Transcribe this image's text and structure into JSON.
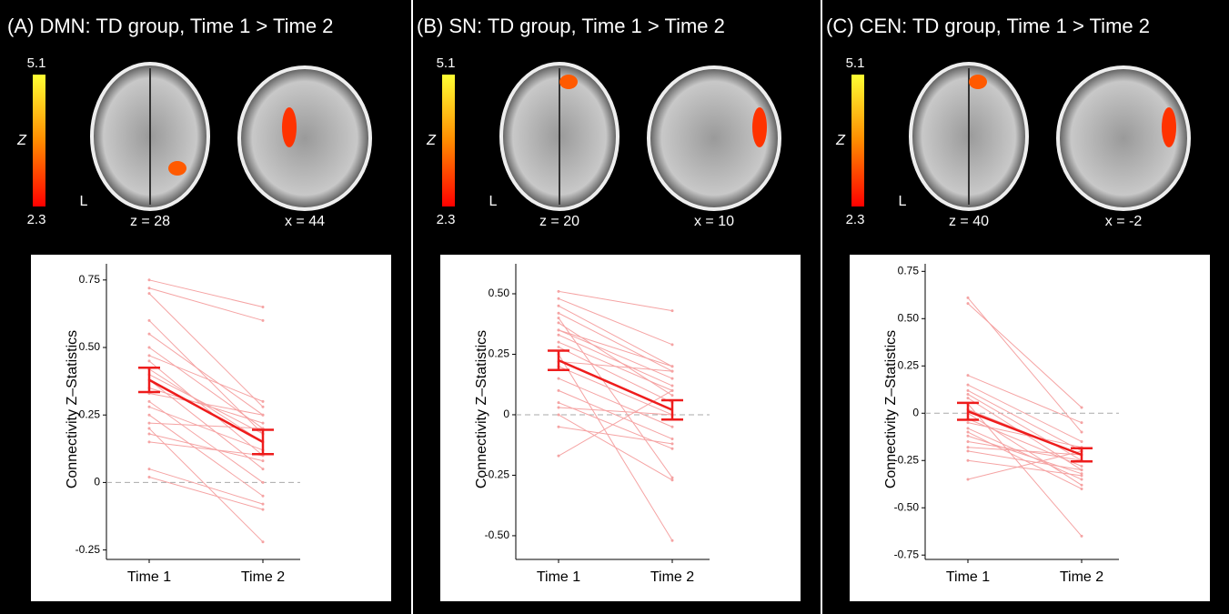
{
  "chart_data": [
    {
      "type": "paired-line",
      "title": "(A) DMN: TD group, Time 1 > Time 2",
      "colorbar": {
        "max": 5.1,
        "min": 2.3,
        "label": "Z"
      },
      "brains": [
        {
          "label": "z = 28"
        },
        {
          "label": "x = 44"
        }
      ],
      "side_label": "L",
      "ylabel": "Connectivity Z–Statistics",
      "categories": [
        "Time 1",
        "Time 2"
      ],
      "ylim": [
        -0.285,
        0.81
      ],
      "yticks": [
        -0.25,
        0,
        {
          "value": 0.25,
          "label": "0.25"
        },
        {
          "value": 0.5,
          "label": "0.50"
        },
        0.75
      ],
      "reference_line": 0,
      "subject_color": "#f5a3a3",
      "mean_color": "#ee1c1c",
      "subjects": [
        [
          0.75,
          0.65
        ],
        [
          0.72,
          0.6
        ],
        [
          0.7,
          0.28
        ],
        [
          0.55,
          0.25
        ],
        [
          0.5,
          0.2
        ],
        [
          0.47,
          0.3
        ],
        [
          0.45,
          0.1
        ],
        [
          0.42,
          0.15
        ],
        [
          0.4,
          0.18
        ],
        [
          0.38,
          0.05
        ],
        [
          0.35,
          0.22
        ],
        [
          0.33,
          0.25
        ],
        [
          0.3,
          0
        ],
        [
          0.28,
          0.12
        ],
        [
          0.25,
          -0.05
        ],
        [
          0.22,
          0.2
        ],
        [
          0.2,
          -0.22
        ],
        [
          0.18,
          0.08
        ],
        [
          0.15,
          0.1
        ],
        [
          0.05,
          -0.08
        ],
        [
          0.02,
          -0.1
        ],
        [
          0.6,
          0.18
        ]
      ],
      "mean": [
        0.38,
        0.15
      ],
      "error": [
        0.045,
        0.045
      ]
    },
    {
      "type": "paired-line",
      "title": "(B) SN: TD group, Time 1 > Time 2",
      "colorbar": {
        "max": 5.1,
        "min": 2.3,
        "label": "Z"
      },
      "brains": [
        {
          "label": "z = 20"
        },
        {
          "label": "x = 10"
        }
      ],
      "side_label": "L",
      "ylabel": "Connectivity Z–Statistics",
      "categories": [
        "Time 1",
        "Time 2"
      ],
      "ylim": [
        -0.598,
        0.624
      ],
      "yticks": [
        {
          "value": -0.5,
          "label": "-0.50"
        },
        -0.25,
        0,
        {
          "value": 0.25,
          "label": "0.25"
        },
        {
          "value": 0.5,
          "label": "0.50"
        }
      ],
      "reference_line": 0,
      "subject_color": "#f5a3a3",
      "mean_color": "#ee1c1c",
      "subjects": [
        [
          0.51,
          0.43
        ],
        [
          0.48,
          0.29
        ],
        [
          0.45,
          0.2
        ],
        [
          0.42,
          0.18
        ],
        [
          0.4,
          -0.26
        ],
        [
          0.35,
          0.15
        ],
        [
          0.33,
          0.12
        ],
        [
          0.3,
          0.1
        ],
        [
          0.28,
          0.05
        ],
        [
          0.25,
          -0.52
        ],
        [
          0.22,
          0.18
        ],
        [
          0.2,
          0
        ],
        [
          0.15,
          -0.05
        ],
        [
          0.1,
          -0.1
        ],
        [
          0.05,
          -0.14
        ],
        [
          0,
          -0.27
        ],
        [
          -0.05,
          -0.12
        ],
        [
          -0.17,
          0.1
        ],
        [
          0.35,
          0.2
        ],
        [
          0.38,
          0.08
        ],
        [
          0.03,
          0
        ]
      ],
      "mean": [
        0.225,
        0.02
      ],
      "error": [
        0.04,
        0.04
      ]
    },
    {
      "type": "paired-line",
      "title": "(C) CEN: TD group, Time 1 > Time 2",
      "colorbar": {
        "max": 5.1,
        "min": 2.3,
        "label": "Z"
      },
      "brains": [
        {
          "label": "z = 40"
        },
        {
          "label": "x = -2"
        }
      ],
      "side_label": "L",
      "ylabel": "Connectivity Z–Statistics",
      "categories": [
        "Time 1",
        "Time 2"
      ],
      "ylim": [
        -0.773,
        0.79
      ],
      "yticks": [
        {
          "value": -0.75,
          "label": "-0.75"
        },
        {
          "value": -0.5,
          "label": "-0.50"
        },
        -0.25,
        0,
        {
          "value": 0.25,
          "label": "0.25"
        },
        {
          "value": 0.5,
          "label": "0.50"
        },
        0.75
      ],
      "reference_line": 0,
      "subject_color": "#f5a3a3",
      "mean_color": "#ee1c1c",
      "subjects": [
        [
          0.61,
          -0.1
        ],
        [
          0.58,
          0.03
        ],
        [
          0.2,
          -0.05
        ],
        [
          0.15,
          -0.15
        ],
        [
          0.12,
          -0.2
        ],
        [
          0.1,
          -0.25
        ],
        [
          0.08,
          -0.3
        ],
        [
          0.05,
          -0.65
        ],
        [
          0.02,
          -0.22
        ],
        [
          0,
          -0.38
        ],
        [
          -0.03,
          -0.28
        ],
        [
          -0.05,
          -0.18
        ],
        [
          -0.08,
          -0.35
        ],
        [
          -0.1,
          -0.4
        ],
        [
          -0.12,
          -0.32
        ],
        [
          -0.15,
          -0.25
        ],
        [
          -0.18,
          -0.22
        ],
        [
          -0.2,
          -0.3
        ],
        [
          -0.25,
          -0.33
        ],
        [
          -0.35,
          -0.2
        ]
      ],
      "mean": [
        0.01,
        -0.22
      ],
      "error": [
        0.045,
        0.035
      ]
    }
  ]
}
